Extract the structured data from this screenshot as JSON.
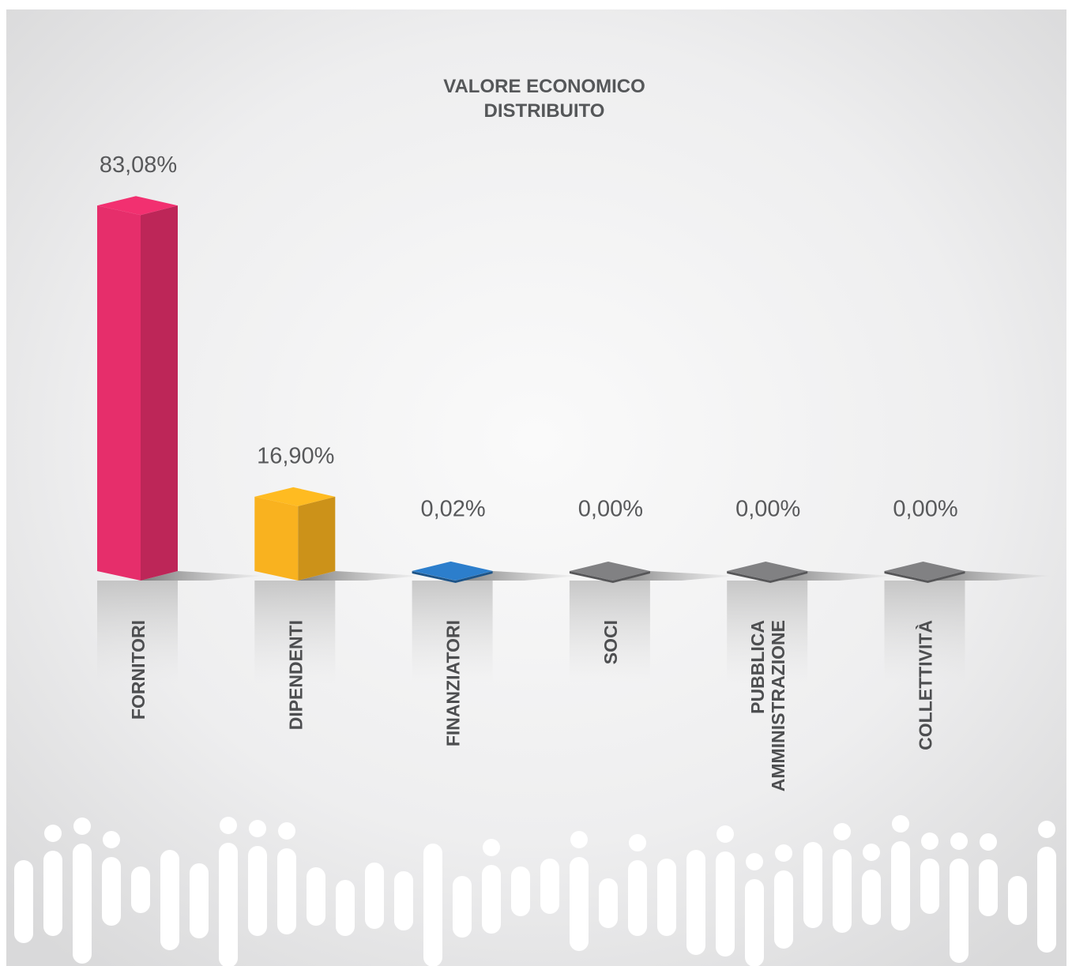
{
  "chart_data": {
    "type": "bar3d",
    "title": "VALORE ECONOMICO DISTRIBUITO",
    "categories": [
      "FORNITORI",
      "DIPENDENTI",
      "FINANZIATORI",
      "SOCI",
      "PUBBLICA AMMINISTRAZIONE",
      "COLLETTIVITÀ"
    ],
    "values": [
      83.08,
      16.9,
      0.02,
      0,
      0,
      0
    ],
    "value_labels": [
      "83,08%",
      "16,90%",
      "0,02%",
      "0,00%",
      "0,00%",
      "0,00%"
    ],
    "colors": [
      "#e62e6b",
      "#f9b21f",
      "#2a78c2",
      "#7b7b7d",
      "#7b7b7d",
      "#7b7b7d"
    ]
  }
}
